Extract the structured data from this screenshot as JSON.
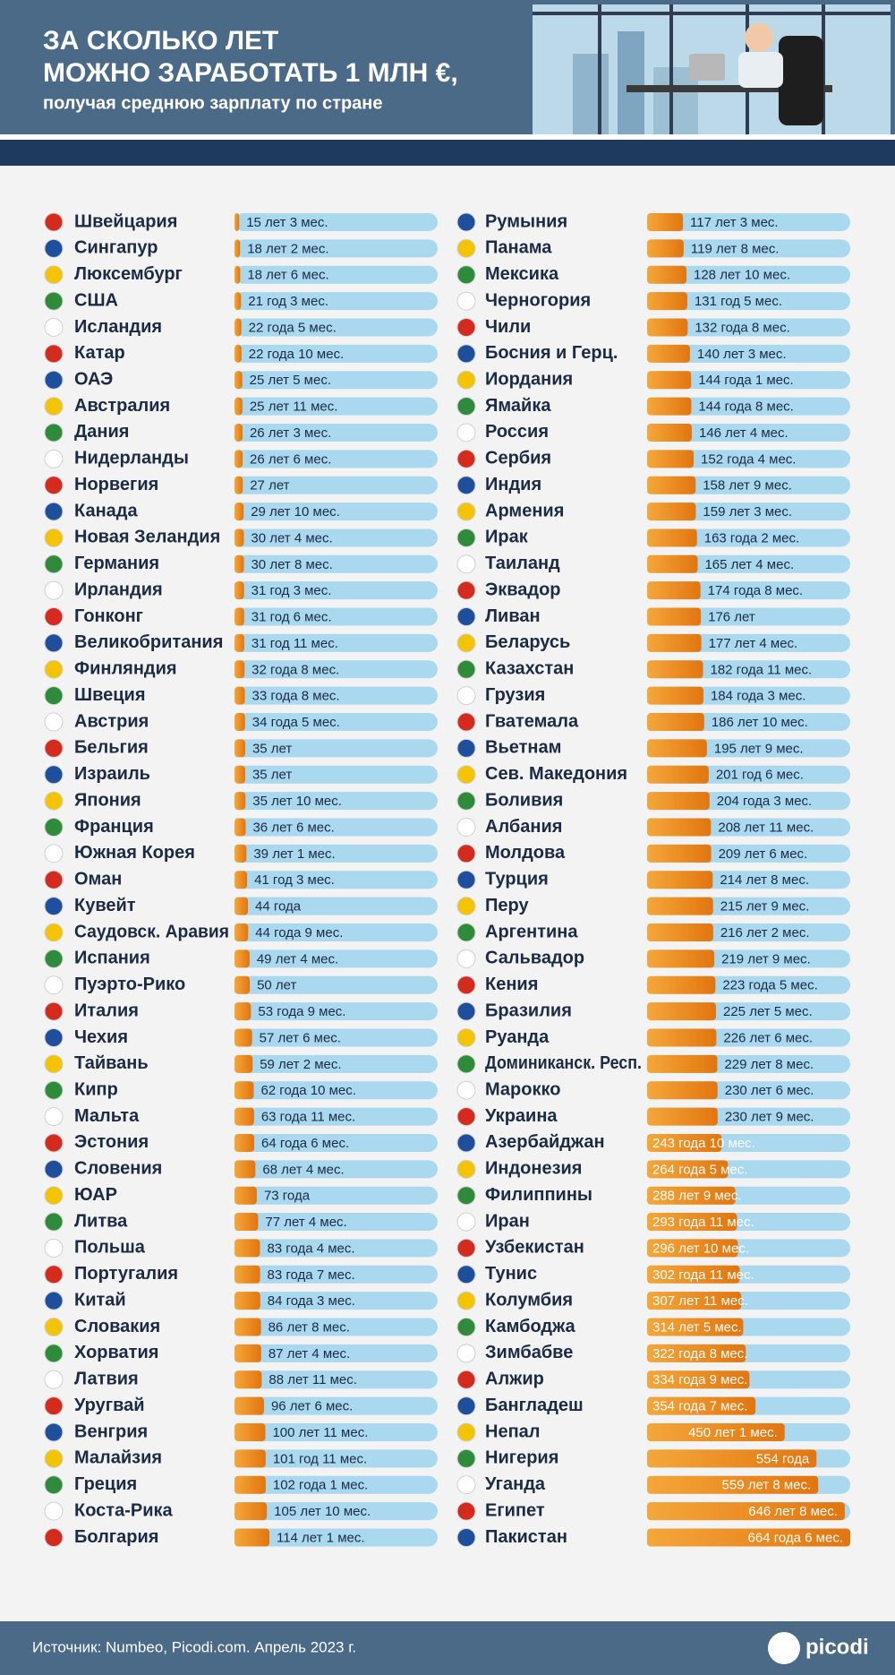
{
  "chart_data": {
    "type": "bar",
    "title": [
      "ЗА СКОЛЬКО ЛЕТ",
      "МОЖНО ЗАРАБОТАТЬ 1 МЛН €,"
    ],
    "subtitle": "получая среднюю зарплату по стране",
    "source": "Источник: Numbeo, Picodi.com. Апрель 2023 г.",
    "logo": "picodi",
    "color": "#ee8a1e",
    "track_color": "#a9d8ef",
    "categories": [
      "Швейцария",
      "Сингапур",
      "Люксембург",
      "США",
      "Исландия",
      "Катар",
      "ОАЭ",
      "Австралия",
      "Дания",
      "Нидерланды",
      "Норвегия",
      "Канада",
      "Новая Зеландия",
      "Германия",
      "Ирландия",
      "Гонконг",
      "Великобритания",
      "Финляндия",
      "Швеция",
      "Австрия",
      "Бельгия",
      "Израиль",
      "Япония",
      "Франция",
      "Южная Корея",
      "Оман",
      "Кувейт",
      "Саудовск. Аравия",
      "Испания",
      "Пуэрто-Рико",
      "Италия",
      "Чехия",
      "Тайвань",
      "Кипр",
      "Мальта",
      "Эстония",
      "Словения",
      "ЮАР",
      "Литва",
      "Польша",
      "Португалия",
      "Китай",
      "Словакия",
      "Хорватия",
      "Латвия",
      "Уругвай",
      "Венгрия",
      "Малайзия",
      "Греция",
      "Коста-Рика",
      "Болгария",
      "Румыния",
      "Панама",
      "Мексика",
      "Черногория",
      "Чили",
      "Босния и Герц.",
      "Иордания",
      "Ямайка",
      "Россия",
      "Сербия",
      "Индия",
      "Армения",
      "Ирак",
      "Таиланд",
      "Эквадор",
      "Ливан",
      "Беларусь",
      "Казахстан",
      "Грузия",
      "Гватемала",
      "Вьетнам",
      "Сев. Македония",
      "Боливия",
      "Албания",
      "Молдова",
      "Турция",
      "Перу",
      "Аргентина",
      "Сальвадор",
      "Кения",
      "Бразилия",
      "Руанда",
      "Доминиканск. Респ.",
      "Марокко",
      "Украина",
      "Азербайджан",
      "Индонезия",
      "Филиппины",
      "Иран",
      "Узбекистан",
      "Тунис",
      "Колумбия",
      "Камбоджа",
      "Зимбабве",
      "Алжир",
      "Бангладеш",
      "Непал",
      "Нигерия",
      "Уганда",
      "Египет",
      "Пакистан"
    ],
    "values": [
      15.25,
      18.17,
      18.5,
      21.25,
      22.42,
      22.83,
      25.42,
      25.92,
      26.25,
      26.5,
      27,
      29.83,
      30.33,
      30.67,
      31.25,
      31.5,
      31.92,
      32.67,
      33.67,
      34.42,
      35,
      35,
      35.83,
      36.5,
      39.08,
      41.25,
      44,
      44.75,
      49.33,
      50,
      53.75,
      57.5,
      59.17,
      62.83,
      63.92,
      64.5,
      68.33,
      73,
      77.33,
      83.33,
      83.58,
      84.25,
      86.67,
      87.33,
      88.92,
      96.5,
      100.92,
      101.92,
      102.08,
      105.83,
      114.08,
      117.25,
      119.67,
      128.83,
      131.42,
      132.67,
      140.25,
      144.08,
      144.67,
      146.33,
      152.33,
      158.75,
      159.25,
      163.17,
      165.33,
      174.67,
      176,
      177.33,
      182.92,
      184.25,
      186.83,
      195.75,
      201.5,
      204.25,
      208.92,
      209.5,
      214.67,
      215.75,
      216.17,
      219.75,
      223.42,
      225.42,
      226.5,
      229.67,
      230.5,
      230.75,
      243.83,
      264.42,
      288.75,
      293.92,
      296.83,
      302.92,
      307.92,
      314.42,
      322.67,
      334.75,
      354.58,
      450.08,
      554,
      559.67,
      646.67,
      664.5
    ],
    "value_labels": [
      "15 лет 3 мес.",
      "18 лет 2 мес.",
      "18 лет 6 мес.",
      "21 год 3 мес.",
      "22 года 5 мес.",
      "22 года 10 мес.",
      "25 лет 5 мес.",
      "25 лет 11 мес.",
      "26 лет 3 мес.",
      "26 лет 6 мес.",
      "27 лет",
      "29 лет 10 мес.",
      "30 лет 4 мес.",
      "30 лет 8 мес.",
      "31 год 3 мес.",
      "31 год 6 мес.",
      "31 год 11 мес.",
      "32 года 8 мес.",
      "33 года 8 мес.",
      "34 года 5 мес.",
      "35 лет",
      "35 лет",
      "35 лет 10 мес.",
      "36 лет 6 мес.",
      "39 лет 1 мес.",
      "41 год 3 мес.",
      "44 года",
      "44 года 9 мес.",
      "49 лет 4 мес.",
      "50 лет",
      "53 года 9 мес.",
      "57 лет 6 мес.",
      "59 лет 2 мес.",
      "62 года 10 мес.",
      "63 года 11 мес.",
      "64 года 6 мес.",
      "68 лет 4 мес.",
      "73 года",
      "77 лет 4 мес.",
      "83 года 4 мес.",
      "83 года 7 мес.",
      "84 года 3 мес.",
      "86 лет 8 мес.",
      "87 лет 4 мес.",
      "88 лет 11 мес.",
      "96 лет 6 мес.",
      "100 лет 11 мес.",
      "101 год 11 мес.",
      "102 года 1 мес.",
      "105 лет 10 мес.",
      "114 лет 1 мес.",
      "117 лет 3 мес.",
      "119 лет 8 мес.",
      "128 лет 10 мес.",
      "131 год 5 мес.",
      "132 года 8 мес.",
      "140 лет 3 мес.",
      "144 года 1 мес.",
      "144 года 8 мес.",
      "146 лет 4 мес.",
      "152 года 4 мес.",
      "158 лет 9 мес.",
      "159 лет 3 мес.",
      "163 года 2 мес.",
      "165 лет 4 мес.",
      "174 года 8 мес.",
      "176 лет",
      "177 лет 4 мес.",
      "182 года 11 мес.",
      "184 года 3 мес.",
      "186 лет 10 мес.",
      "195 лет 9 мес.",
      "201 год 6 мес.",
      "204 года 3 мес.",
      "208 лет 11 мес.",
      "209 лет 6 мес.",
      "214 лет 8 мес.",
      "215 лет 9 мес.",
      "216 лет 2 мес.",
      "219 лет 9 мес.",
      "223 года 5 мес.",
      "225 лет 5 мес.",
      "226 лет 6 мес.",
      "229 лет 8 мес.",
      "230 лет 6 мес.",
      "230 лет 9 мес.",
      "243 года 10 мес.",
      "264 года 5 мес.",
      "288 лет 9 мес.",
      "293 года 11 мес.",
      "296 лет 10 мес.",
      "302 года 11 мес.",
      "307 лет 11 мес.",
      "314 лет 5 мес.",
      "322 года 8 мес.",
      "334 года 9 мес.",
      "354 года 7 мес.",
      "450 лет 1 мес.",
      "554 года",
      "559 лет 8 мес.",
      "646 лет 8 мес.",
      "664 года 6 мес."
    ]
  }
}
